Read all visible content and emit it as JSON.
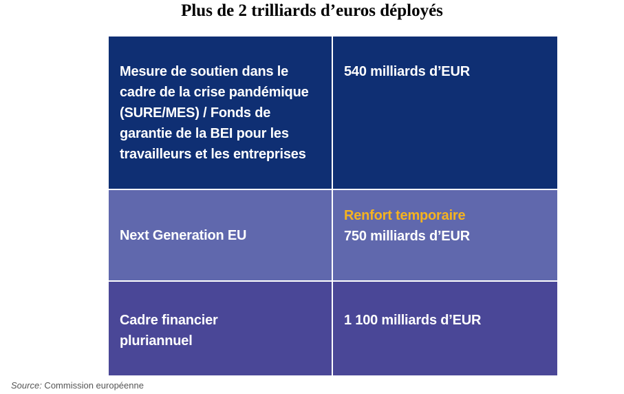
{
  "title": "Plus de 2 trilliards d’euros déployés",
  "rows": [
    {
      "label": "Mesure de soutien dans le cadre de la crise pandémique (SURE/MES) / Fonds de garantie de la BEI pour les travailleurs et les entreprises",
      "highlight": "",
      "value": "540 milliards d’EUR"
    },
    {
      "label": "Next Generation EU",
      "highlight": "Renfort temporaire",
      "value": "750 milliards d’EUR"
    },
    {
      "label": "Cadre financier pluriannuel",
      "highlight": "",
      "value": "1 100 milliards d’EUR"
    }
  ],
  "source": {
    "label": "Source:",
    "text": " Commission européenne"
  },
  "colors": {
    "row1": "#0f2f73",
    "row2": "#6068ad",
    "row3": "#4a4797",
    "highlight": "#f5b320"
  }
}
